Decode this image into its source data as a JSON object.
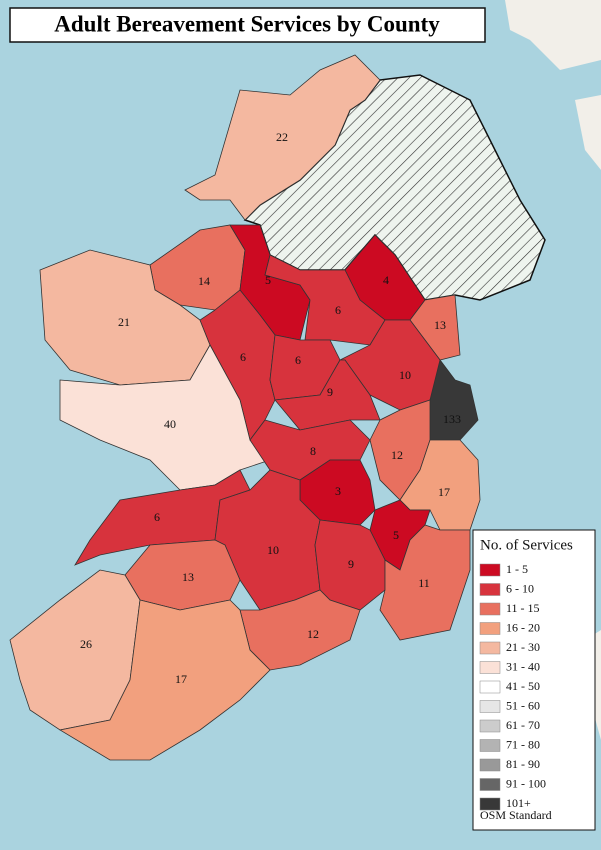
{
  "title": "Adult Bereavement Services by County",
  "counties": [
    {
      "value": 22,
      "color": "#f4b8a0"
    },
    {
      "value": 14,
      "color": "#e8705f"
    },
    {
      "value": 21,
      "color": "#f4b8a0"
    },
    {
      "value": 5,
      "color": "#cc0a22"
    },
    {
      "value": 4,
      "color": "#cc0a22"
    },
    {
      "value": 6,
      "color": "#d7333d"
    },
    {
      "value": 6,
      "color": "#d7333d"
    },
    {
      "value": 6,
      "color": "#d7333d"
    },
    {
      "value": 13,
      "color": "#e8705f"
    },
    {
      "value": 10,
      "color": "#d7333d"
    },
    {
      "value": 9,
      "color": "#d7333d"
    },
    {
      "value": 133,
      "color": "#383838"
    },
    {
      "value": 40,
      "color": "#fbe1d7"
    },
    {
      "value": 12,
      "color": "#e8705f"
    },
    {
      "value": 8,
      "color": "#d7333d"
    },
    {
      "value": 3,
      "color": "#cc0a22"
    },
    {
      "value": 17,
      "color": "#f2a07e"
    },
    {
      "value": 5,
      "color": "#cc0a22"
    },
    {
      "value": 6,
      "color": "#d7333d"
    },
    {
      "value": 10,
      "color": "#d7333d"
    },
    {
      "value": 9,
      "color": "#d7333d"
    },
    {
      "value": 13,
      "color": "#e8705f"
    },
    {
      "value": 11,
      "color": "#e8705f"
    },
    {
      "value": 12,
      "color": "#e8705f"
    },
    {
      "value": 26,
      "color": "#f4b8a0"
    },
    {
      "value": 17,
      "color": "#f2a07e"
    }
  ],
  "legend": {
    "title": "No. of Services",
    "items": [
      {
        "label": "1 - 5",
        "color": "#cc0a22"
      },
      {
        "label": "6 - 10",
        "color": "#d7333d"
      },
      {
        "label": "11 - 15",
        "color": "#e8705f"
      },
      {
        "label": "16 - 20",
        "color": "#f2a07e"
      },
      {
        "label": "21 - 30",
        "color": "#f4b8a0"
      },
      {
        "label": "31 - 40",
        "color": "#fbe1d7"
      },
      {
        "label": "41 - 50",
        "color": "#ffffff"
      },
      {
        "label": "51 - 60",
        "color": "#e6e6e6"
      },
      {
        "label": "61 - 70",
        "color": "#cccccc"
      },
      {
        "label": "71 - 80",
        "color": "#b3b3b3"
      },
      {
        "label": "81 - 90",
        "color": "#999999"
      },
      {
        "label": "91 - 100",
        "color": "#666666"
      },
      {
        "label": "101+",
        "color": "#383838"
      }
    ]
  },
  "source": "OSM Standard"
}
